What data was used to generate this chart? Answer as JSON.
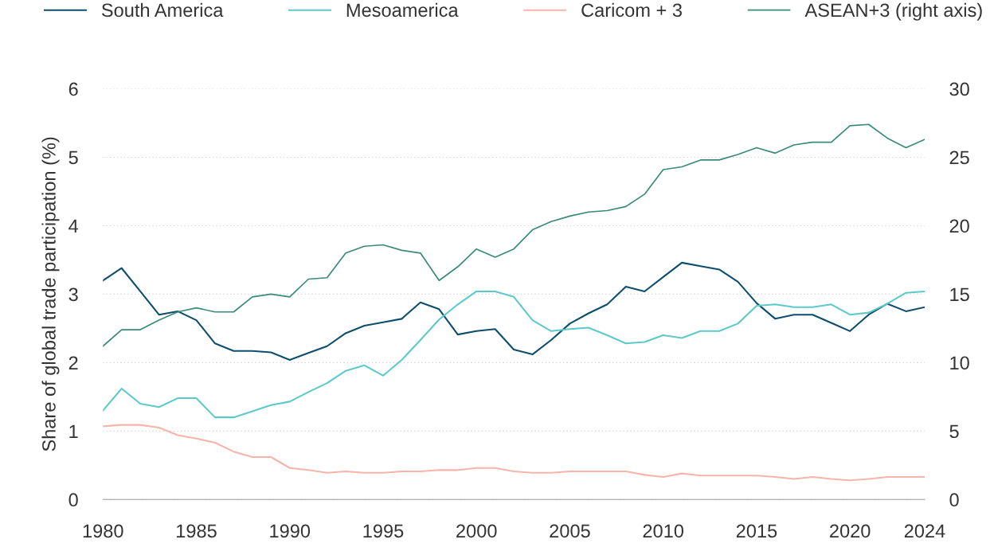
{
  "chart_data": {
    "type": "line",
    "ylabel": "Share of global trade participation (%)",
    "x": [
      1980,
      1981,
      1982,
      1983,
      1984,
      1985,
      1986,
      1987,
      1988,
      1989,
      1990,
      1991,
      1992,
      1993,
      1994,
      1995,
      1996,
      1997,
      1998,
      1999,
      2000,
      2001,
      2002,
      2003,
      2004,
      2005,
      2006,
      2007,
      2008,
      2009,
      2010,
      2011,
      2012,
      2013,
      2014,
      2015,
      2016,
      2017,
      2018,
      2019,
      2020,
      2021,
      2022,
      2023,
      2024
    ],
    "series": [
      {
        "name": "South America",
        "color": "#0d4d6e",
        "values": [
          3.2,
          3.38,
          3.04,
          2.7,
          2.75,
          2.62,
          2.28,
          2.17,
          2.17,
          2.15,
          2.04,
          2.14,
          2.24,
          2.43,
          2.54,
          2.59,
          2.64,
          2.88,
          2.78,
          2.41,
          2.46,
          2.49,
          2.19,
          2.12,
          2.33,
          2.57,
          2.72,
          2.85,
          3.11,
          3.04,
          3.25,
          3.46,
          3.41,
          3.36,
          3.18,
          2.87,
          2.64,
          2.7,
          2.7,
          2.58,
          2.46,
          2.7,
          2.86,
          2.75,
          2.81
        ]
      },
      {
        "name": "Mesoamerica",
        "color": "#5ec9c9",
        "values": [
          1.3,
          1.62,
          1.4,
          1.35,
          1.48,
          1.48,
          1.2,
          1.2,
          1.29,
          1.38,
          1.43,
          1.57,
          1.7,
          1.88,
          1.96,
          1.81,
          2.04,
          2.33,
          2.63,
          2.85,
          3.04,
          3.04,
          2.96,
          2.62,
          2.46,
          2.49,
          2.51,
          2.4,
          2.28,
          2.3,
          2.4,
          2.36,
          2.46,
          2.46,
          2.57,
          2.83,
          2.85,
          2.81,
          2.81,
          2.85,
          2.7,
          2.73,
          2.86,
          3.02,
          3.04
        ]
      },
      {
        "name": "Caricom + 3",
        "color": "#f7b5aa",
        "values": [
          1.07,
          1.09,
          1.09,
          1.05,
          0.94,
          0.89,
          0.83,
          0.7,
          0.62,
          0.62,
          0.46,
          0.43,
          0.39,
          0.41,
          0.39,
          0.39,
          0.41,
          0.41,
          0.43,
          0.43,
          0.46,
          0.46,
          0.41,
          0.39,
          0.39,
          0.41,
          0.41,
          0.41,
          0.41,
          0.36,
          0.33,
          0.38,
          0.35,
          0.35,
          0.35,
          0.35,
          0.33,
          0.3,
          0.33,
          0.3,
          0.28,
          0.3,
          0.33,
          0.33,
          0.33
        ]
      },
      {
        "name": "ASEAN+3 (right axis)",
        "color": "#3a8a78",
        "axis": "y2",
        "values": [
          11.2,
          12.4,
          12.4,
          13.1,
          13.7,
          14.0,
          13.7,
          13.7,
          14.8,
          15.0,
          14.8,
          16.1,
          16.2,
          18.0,
          18.5,
          18.6,
          18.2,
          18.0,
          16.0,
          17.0,
          18.3,
          17.7,
          18.3,
          19.7,
          20.3,
          20.7,
          21.0,
          21.1,
          21.4,
          22.3,
          24.1,
          24.3,
          24.8,
          24.8,
          25.2,
          25.7,
          25.3,
          25.9,
          26.1,
          26.1,
          27.3,
          27.4,
          26.4,
          25.7,
          26.3
        ]
      }
    ],
    "xlim": [
      1980,
      2024
    ],
    "xticks": [
      1980,
      1985,
      1990,
      1995,
      2000,
      2005,
      2010,
      2015,
      2020,
      2024
    ],
    "ylim": [
      0,
      6
    ],
    "yticks": [
      0,
      1,
      2,
      3,
      4,
      5,
      6
    ],
    "y2lim": [
      0,
      30
    ],
    "y2ticks": [
      0,
      5,
      10,
      15,
      20,
      25,
      30
    ],
    "grid": "y",
    "legend": "top",
    "marker": "none",
    "line_style": "solid"
  }
}
